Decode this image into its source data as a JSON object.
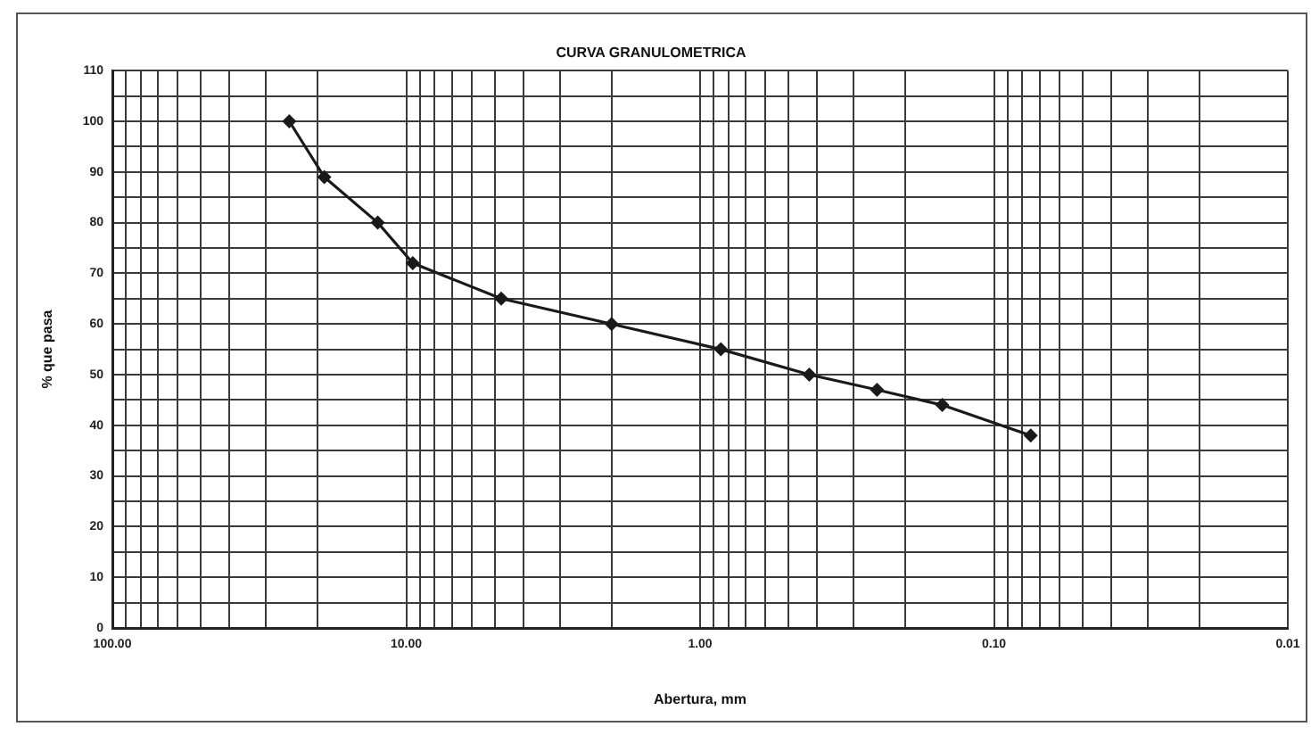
{
  "chart_data": {
    "type": "line",
    "title": "CURVA GRANULOMETRICA",
    "xlabel": "Abertura, mm",
    "ylabel": "% que pasa",
    "x": [
      25,
      19,
      12.5,
      9.5,
      4.75,
      2,
      0.85,
      0.425,
      0.25,
      0.15,
      0.075
    ],
    "values": [
      100,
      89,
      80,
      72,
      65,
      60,
      55,
      50,
      47,
      44,
      38
    ],
    "color": "#1a1a1a",
    "xlim": [
      100,
      0.01
    ],
    "ylim": [
      0,
      110
    ],
    "xticks": [
      {
        "value": 100,
        "label": "100.00"
      },
      {
        "value": 90,
        "label": null
      },
      {
        "value": 80,
        "label": null
      },
      {
        "value": 70,
        "label": null
      },
      {
        "value": 60,
        "label": null
      },
      {
        "value": 50,
        "label": null
      },
      {
        "value": 40,
        "label": null
      },
      {
        "value": 30,
        "label": null
      },
      {
        "value": 20,
        "label": null
      },
      {
        "value": 10,
        "label": "10.00"
      },
      {
        "value": 9,
        "label": null
      },
      {
        "value": 8,
        "label": null
      },
      {
        "value": 7,
        "label": null
      },
      {
        "value": 6,
        "label": null
      },
      {
        "value": 5,
        "label": null
      },
      {
        "value": 4,
        "label": null
      },
      {
        "value": 3,
        "label": null
      },
      {
        "value": 2,
        "label": null
      },
      {
        "value": 1,
        "label": "1.00"
      },
      {
        "value": 0.9,
        "label": null
      },
      {
        "value": 0.8,
        "label": null
      },
      {
        "value": 0.7,
        "label": null
      },
      {
        "value": 0.6,
        "label": null
      },
      {
        "value": 0.5,
        "label": null
      },
      {
        "value": 0.4,
        "label": null
      },
      {
        "value": 0.3,
        "label": null
      },
      {
        "value": 0.2,
        "label": null
      },
      {
        "value": 0.1,
        "label": "0.10"
      },
      {
        "value": 0.09,
        "label": null
      },
      {
        "value": 0.08,
        "label": null
      },
      {
        "value": 0.07,
        "label": null
      },
      {
        "value": 0.06,
        "label": null
      },
      {
        "value": 0.05,
        "label": null
      },
      {
        "value": 0.04,
        "label": null
      },
      {
        "value": 0.03,
        "label": null
      },
      {
        "value": 0.02,
        "label": null
      },
      {
        "value": 0.01,
        "label": "0.01"
      }
    ],
    "yticks": [
      0,
      {
        "value": 5,
        "label": null
      },
      10,
      {
        "value": 15,
        "label": null
      },
      20,
      {
        "value": 25,
        "label": null
      },
      30,
      {
        "value": 35,
        "label": null
      },
      40,
      {
        "value": 45,
        "label": null
      },
      50,
      {
        "value": 55,
        "label": null
      },
      60,
      {
        "value": 65,
        "label": null
      },
      70,
      {
        "value": 75,
        "label": null
      },
      80,
      {
        "value": 85,
        "label": null
      },
      90,
      {
        "value": 95,
        "label": null
      },
      100,
      {
        "value": 105,
        "label": null
      },
      110
    ],
    "log": "x",
    "grid": true,
    "marker": "diamond",
    "line_style": "solid"
  }
}
